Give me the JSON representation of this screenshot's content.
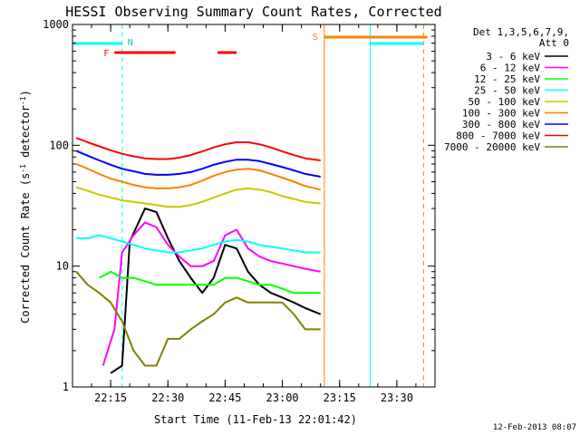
{
  "chart_data": {
    "type": "line",
    "title": "HESSI Observing Summary Count Rates, Corrected",
    "xlabel": "Start Time (11-Feb-13 22:01:42)",
    "ylabel": "Corrected Count Rate (s⁻¹ detector⁻¹)",
    "ylabel_main": "Corrected Count Rate (s",
    "ylabel_mid": " detector",
    "ylabel_end": ")",
    "y_scale": "log",
    "ylim": [
      1,
      1000
    ],
    "xlim": [
      "22:05",
      "23:40"
    ],
    "x_ticks": [
      "22:15",
      "22:30",
      "22:45",
      "23:00",
      "23:15",
      "23:30"
    ],
    "y_ticks": [
      "1",
      "10",
      "100",
      "1000"
    ],
    "legend_title_line1": "Det 1,3,5,6,7,9,",
    "legend_title_line2": "Att 0",
    "legend_placement": "right",
    "timestamp": "12-Feb-2013 08:07",
    "markers": {
      "N": "N",
      "F": "F",
      "S": "S"
    },
    "flag_bars": [
      {
        "label": "night",
        "color": "#00ffff",
        "segments": [
          [
            "22:05",
            "22:18"
          ],
          [
            "23:23",
            "23:37"
          ]
        ]
      },
      {
        "label": "flare",
        "color": "#ff0000",
        "segments": [
          [
            "22:16",
            "22:32"
          ],
          [
            "22:43",
            "22:48"
          ]
        ]
      },
      {
        "label": "saa",
        "color": "#ff8000",
        "segments": [
          [
            "23:11",
            "23:38"
          ]
        ]
      }
    ],
    "vertical_lines": [
      {
        "time": "22:18",
        "color": "#00ffff",
        "style": "dashed"
      },
      {
        "time": "23:11",
        "color": "#ff8000",
        "style": "solid"
      },
      {
        "time": "23:23",
        "color": "#00ffff",
        "style": "solid"
      },
      {
        "time": "23:37",
        "color": "#ff8000",
        "style": "dashed"
      }
    ],
    "series": [
      {
        "name": "3 - 6 keV",
        "color": "#000000",
        "x": [
          "22:15",
          "22:18",
          "22:20",
          "22:24",
          "22:27",
          "22:30",
          "22:33",
          "22:36",
          "22:39",
          "22:42",
          "22:45",
          "22:48",
          "22:51",
          "22:54",
          "22:57",
          "23:00",
          "23:03",
          "23:06",
          "23:10"
        ],
        "values": [
          1.3,
          1.5,
          16,
          30,
          28,
          17,
          11,
          8,
          6,
          8,
          15,
          14,
          9,
          7,
          6,
          5.5,
          5,
          4.5,
          4
        ]
      },
      {
        "name": "6 - 12 keV",
        "color": "#ff00ff",
        "x": [
          "22:13",
          "22:16",
          "22:18",
          "22:21",
          "22:24",
          "22:27",
          "22:30",
          "22:33",
          "22:36",
          "22:39",
          "22:42",
          "22:45",
          "22:48",
          "22:51",
          "22:54",
          "22:57",
          "23:00",
          "23:03",
          "23:06",
          "23:10"
        ],
        "values": [
          1.5,
          3,
          13,
          18,
          23,
          21,
          15,
          12,
          10,
          10,
          11,
          18,
          20,
          14,
          12,
          11,
          10.5,
          10,
          9.5,
          9
        ]
      },
      {
        "name": "12 - 25 keV",
        "color": "#00ff00",
        "x": [
          "22:12",
          "22:15",
          "22:18",
          "22:21",
          "22:24",
          "22:27",
          "22:30",
          "22:33",
          "22:36",
          "22:39",
          "22:42",
          "22:45",
          "22:48",
          "22:51",
          "22:54",
          "22:57",
          "23:00",
          "23:03",
          "23:06",
          "23:10"
        ],
        "values": [
          8,
          9,
          8,
          8,
          7.5,
          7,
          7,
          7,
          7,
          7,
          7,
          8,
          8,
          7.5,
          7,
          7,
          6.5,
          6,
          6,
          6
        ]
      },
      {
        "name": "25 - 50 keV",
        "color": "#00ffff",
        "x": [
          "22:06",
          "22:09",
          "22:12",
          "22:15",
          "22:18",
          "22:21",
          "22:24",
          "22:27",
          "22:30",
          "22:33",
          "22:36",
          "22:39",
          "22:42",
          "22:45",
          "22:48",
          "22:51",
          "22:54",
          "22:57",
          "23:00",
          "23:03",
          "23:06",
          "23:10"
        ],
        "values": [
          17,
          17,
          18,
          17,
          16,
          15,
          14,
          13.5,
          13,
          13,
          13.5,
          14,
          15,
          16,
          16.5,
          16,
          15,
          14.5,
          14,
          13.5,
          13,
          13
        ]
      },
      {
        "name": "50 - 100 keV",
        "color": "#c8c800",
        "x": [
          "22:06",
          "22:09",
          "22:12",
          "22:15",
          "22:18",
          "22:21",
          "22:24",
          "22:27",
          "22:30",
          "22:33",
          "22:36",
          "22:39",
          "22:42",
          "22:45",
          "22:48",
          "22:51",
          "22:54",
          "22:57",
          "23:00",
          "23:03",
          "23:06",
          "23:10"
        ],
        "values": [
          45,
          42,
          39,
          37,
          35,
          34,
          33,
          32,
          31,
          31,
          32,
          34,
          37,
          40,
          43,
          44,
          43,
          41,
          38,
          36,
          34,
          33
        ]
      },
      {
        "name": "100 - 300 keV",
        "color": "#ff8000",
        "x": [
          "22:06",
          "22:09",
          "22:12",
          "22:15",
          "22:18",
          "22:21",
          "22:24",
          "22:27",
          "22:30",
          "22:33",
          "22:36",
          "22:39",
          "22:42",
          "22:45",
          "22:48",
          "22:51",
          "22:54",
          "22:57",
          "23:00",
          "23:03",
          "23:06",
          "23:10"
        ],
        "values": [
          70,
          64,
          58,
          53,
          50,
          47,
          45,
          44,
          44,
          45,
          47,
          51,
          56,
          60,
          63,
          64,
          62,
          58,
          54,
          50,
          46,
          43
        ]
      },
      {
        "name": "300 - 800 keV",
        "color": "#0000ff",
        "x": [
          "22:06",
          "22:09",
          "22:12",
          "22:15",
          "22:18",
          "22:21",
          "22:24",
          "22:27",
          "22:30",
          "22:33",
          "22:36",
          "22:39",
          "22:42",
          "22:45",
          "22:48",
          "22:51",
          "22:54",
          "22:57",
          "23:00",
          "23:03",
          "23:06",
          "23:10"
        ],
        "values": [
          90,
          82,
          75,
          69,
          64,
          61,
          58,
          57,
          57,
          58,
          60,
          64,
          69,
          73,
          76,
          76,
          74,
          70,
          66,
          62,
          58,
          55
        ]
      },
      {
        "name": "800 - 7000 keV",
        "color": "#ff0000",
        "x": [
          "22:06",
          "22:09",
          "22:12",
          "22:15",
          "22:18",
          "22:21",
          "22:24",
          "22:27",
          "22:30",
          "22:33",
          "22:36",
          "22:39",
          "22:42",
          "22:45",
          "22:48",
          "22:51",
          "22:54",
          "22:57",
          "23:00",
          "23:03",
          "23:06",
          "23:10"
        ],
        "values": [
          115,
          106,
          98,
          91,
          85,
          81,
          78,
          77,
          77,
          79,
          83,
          89,
          96,
          102,
          106,
          106,
          102,
          96,
          89,
          83,
          78,
          75
        ]
      },
      {
        "name": "7000 - 20000 keV",
        "color": "#808000",
        "x": [
          "22:06",
          "22:09",
          "22:12",
          "22:15",
          "22:18",
          "22:21",
          "22:24",
          "22:27",
          "22:30",
          "22:33",
          "22:36",
          "22:39",
          "22:42",
          "22:45",
          "22:48",
          "22:51",
          "22:54",
          "22:57",
          "23:00",
          "23:03",
          "23:06",
          "23:10"
        ],
        "values": [
          9,
          7,
          6,
          5,
          3.5,
          2,
          1.5,
          1.5,
          2.5,
          2.5,
          3,
          3.5,
          4,
          5,
          5.5,
          5,
          5,
          5,
          5,
          4,
          3,
          3
        ]
      }
    ]
  }
}
